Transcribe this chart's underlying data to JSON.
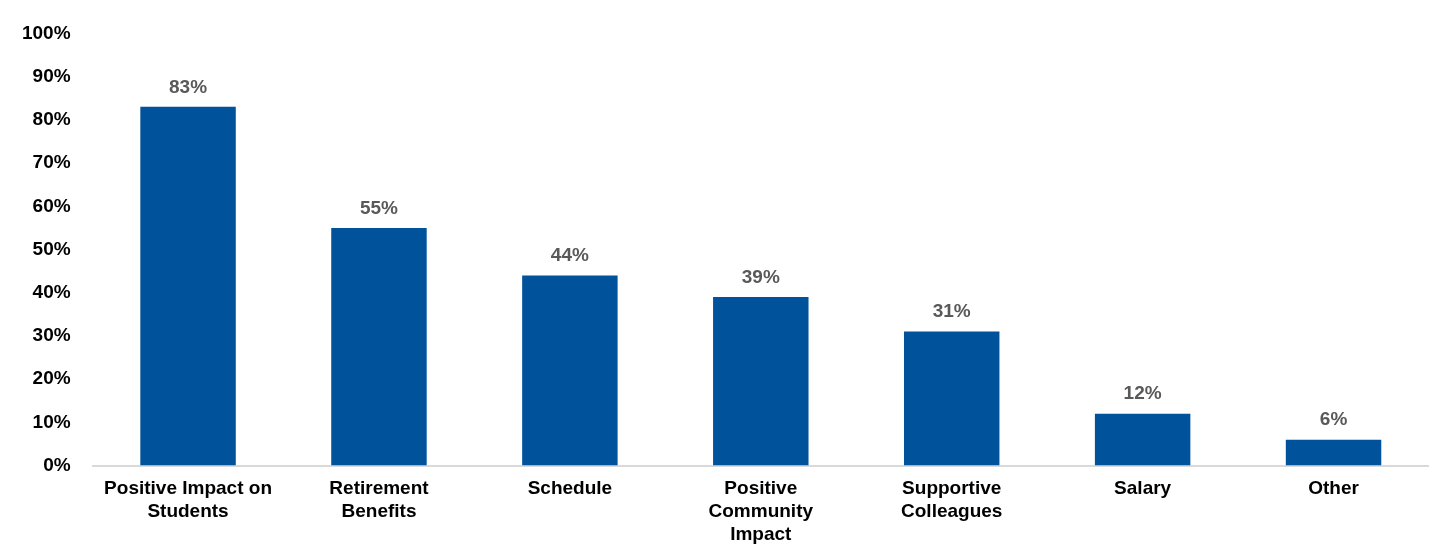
{
  "chart_data": {
    "type": "bar",
    "categories": [
      "Positive Impact on Students",
      "Retirement Benefits",
      "Schedule",
      "Positive Community Impact",
      "Supportive Colleagues",
      "Salary",
      "Other"
    ],
    "values": [
      83,
      55,
      44,
      39,
      31,
      12,
      6
    ],
    "value_labels": [
      "83%",
      "55%",
      "44%",
      "39%",
      "31%",
      "12%",
      "6%"
    ],
    "color": "#00529b",
    "ylim": [
      0,
      100
    ],
    "yticks": [
      {
        "value": 0,
        "label": "0%"
      },
      {
        "value": 10,
        "label": "10%"
      },
      {
        "value": 20,
        "label": "20%"
      },
      {
        "value": 30,
        "label": "30%"
      },
      {
        "value": 40,
        "label": "40%"
      },
      {
        "value": 50,
        "label": "50%"
      },
      {
        "value": 60,
        "label": "60%"
      },
      {
        "value": 70,
        "label": "70%"
      },
      {
        "value": 80,
        "label": "80%"
      },
      {
        "value": 90,
        "label": "90%"
      },
      {
        "value": 100,
        "label": "100%"
      }
    ],
    "grid": false,
    "legend": false
  }
}
